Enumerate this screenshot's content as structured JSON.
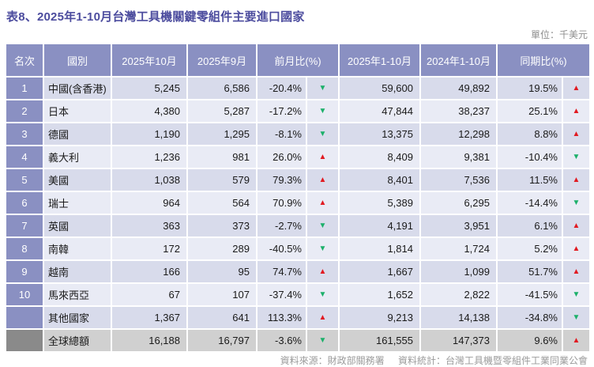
{
  "title": "表8、2025年1-10月台灣工具機關鍵零組件主要進口國家",
  "unit_label": "單位：千美元",
  "glyphs": {
    "up": "▲",
    "down": "▼"
  },
  "colors": {
    "header_bg": "#8a90c2",
    "row_odd": "#d8dbeb",
    "row_even": "#e9ebf5",
    "total_bg": "#d0d0d0",
    "total_rank_bg": "#8a8a8a",
    "up": "#e11b22",
    "down": "#1cb06a",
    "title": "#4c4c9e"
  },
  "table": {
    "headers": [
      "名次",
      "國別",
      "2025年10月",
      "2025年9月",
      "前月比(%)",
      "2025年1-10月",
      "2024年1-10月",
      "同期比(%)"
    ],
    "rows": [
      {
        "rank": "1",
        "country": "中國(含香港)",
        "oct2025": "5,245",
        "sep2025": "6,586",
        "mom": "-20.4%",
        "mom_dir": "down",
        "ytd2025": "59,600",
        "ytd2024": "49,892",
        "yoy": "19.5%",
        "yoy_dir": "up",
        "type": "normal"
      },
      {
        "rank": "2",
        "country": "日本",
        "oct2025": "4,380",
        "sep2025": "5,287",
        "mom": "-17.2%",
        "mom_dir": "down",
        "ytd2025": "47,844",
        "ytd2024": "38,237",
        "yoy": "25.1%",
        "yoy_dir": "up",
        "type": "normal"
      },
      {
        "rank": "3",
        "country": "德國",
        "oct2025": "1,190",
        "sep2025": "1,295",
        "mom": "-8.1%",
        "mom_dir": "down",
        "ytd2025": "13,375",
        "ytd2024": "12,298",
        "yoy": "8.8%",
        "yoy_dir": "up",
        "type": "normal"
      },
      {
        "rank": "4",
        "country": "義大利",
        "oct2025": "1,236",
        "sep2025": "981",
        "mom": "26.0%",
        "mom_dir": "up",
        "ytd2025": "8,409",
        "ytd2024": "9,381",
        "yoy": "-10.4%",
        "yoy_dir": "down",
        "type": "normal"
      },
      {
        "rank": "5",
        "country": "美國",
        "oct2025": "1,038",
        "sep2025": "579",
        "mom": "79.3%",
        "mom_dir": "up",
        "ytd2025": "8,401",
        "ytd2024": "7,536",
        "yoy": "11.5%",
        "yoy_dir": "up",
        "type": "normal"
      },
      {
        "rank": "6",
        "country": "瑞士",
        "oct2025": "964",
        "sep2025": "564",
        "mom": "70.9%",
        "mom_dir": "up",
        "ytd2025": "5,389",
        "ytd2024": "6,295",
        "yoy": "-14.4%",
        "yoy_dir": "down",
        "type": "normal"
      },
      {
        "rank": "7",
        "country": "英國",
        "oct2025": "363",
        "sep2025": "373",
        "mom": "-2.7%",
        "mom_dir": "down",
        "ytd2025": "4,191",
        "ytd2024": "3,951",
        "yoy": "6.1%",
        "yoy_dir": "up",
        "type": "normal"
      },
      {
        "rank": "8",
        "country": "南韓",
        "oct2025": "172",
        "sep2025": "289",
        "mom": "-40.5%",
        "mom_dir": "down",
        "ytd2025": "1,814",
        "ytd2024": "1,724",
        "yoy": "5.2%",
        "yoy_dir": "up",
        "type": "normal"
      },
      {
        "rank": "9",
        "country": "越南",
        "oct2025": "166",
        "sep2025": "95",
        "mom": "74.7%",
        "mom_dir": "up",
        "ytd2025": "1,667",
        "ytd2024": "1,099",
        "yoy": "51.7%",
        "yoy_dir": "up",
        "type": "normal"
      },
      {
        "rank": "10",
        "country": "馬來西亞",
        "oct2025": "67",
        "sep2025": "107",
        "mom": "-37.4%",
        "mom_dir": "down",
        "ytd2025": "1,652",
        "ytd2024": "2,822",
        "yoy": "-41.5%",
        "yoy_dir": "down",
        "type": "normal"
      },
      {
        "rank": "",
        "country": "其他國家",
        "oct2025": "1,367",
        "sep2025": "641",
        "mom": "113.3%",
        "mom_dir": "up",
        "ytd2025": "9,213",
        "ytd2024": "14,138",
        "yoy": "-34.8%",
        "yoy_dir": "down",
        "type": "others"
      },
      {
        "rank": "",
        "country": "全球總額",
        "oct2025": "16,188",
        "sep2025": "16,797",
        "mom": "-3.6%",
        "mom_dir": "down",
        "ytd2025": "161,555",
        "ytd2024": "147,373",
        "yoy": "9.6%",
        "yoy_dir": "up",
        "type": "total"
      }
    ]
  },
  "footer": {
    "source": "資料來源：財政部關務署",
    "stats": "資料統計：台灣工具機暨零組件工業同業公會"
  }
}
